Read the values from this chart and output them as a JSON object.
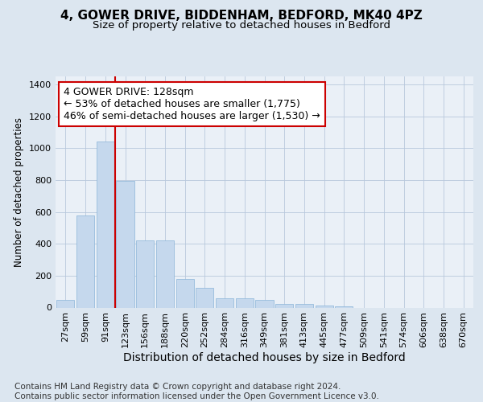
{
  "title_line1": "4, GOWER DRIVE, BIDDENHAM, BEDFORD, MK40 4PZ",
  "title_line2": "Size of property relative to detached houses in Bedford",
  "xlabel": "Distribution of detached houses by size in Bedford",
  "ylabel": "Number of detached properties",
  "categories": [
    "27sqm",
    "59sqm",
    "91sqm",
    "123sqm",
    "156sqm",
    "188sqm",
    "220sqm",
    "252sqm",
    "284sqm",
    "316sqm",
    "349sqm",
    "381sqm",
    "413sqm",
    "445sqm",
    "477sqm",
    "509sqm",
    "541sqm",
    "574sqm",
    "606sqm",
    "638sqm",
    "670sqm"
  ],
  "values": [
    48,
    575,
    1040,
    795,
    420,
    420,
    180,
    125,
    58,
    58,
    48,
    25,
    22,
    15,
    10,
    0,
    0,
    0,
    0,
    0,
    0
  ],
  "bar_color": "#c5d8ed",
  "bar_edge_color": "#8ab4d8",
  "vline_color": "#cc0000",
  "vline_x_index": 3,
  "annotation_text": "4 GOWER DRIVE: 128sqm\n← 53% of detached houses are smaller (1,775)\n46% of semi-detached houses are larger (1,530) →",
  "annotation_box_facecolor": "#ffffff",
  "annotation_box_edgecolor": "#cc0000",
  "ylim": [
    0,
    1450
  ],
  "yticks": [
    0,
    200,
    400,
    600,
    800,
    1000,
    1200,
    1400
  ],
  "bg_color": "#dce6f0",
  "plot_bg_color": "#eaf0f7",
  "footer_text": "Contains HM Land Registry data © Crown copyright and database right 2024.\nContains public sector information licensed under the Open Government Licence v3.0.",
  "title_fontsize": 11,
  "subtitle_fontsize": 9.5,
  "xlabel_fontsize": 10,
  "ylabel_fontsize": 8.5,
  "tick_fontsize": 8,
  "annotation_fontsize": 9,
  "footer_fontsize": 7.5
}
